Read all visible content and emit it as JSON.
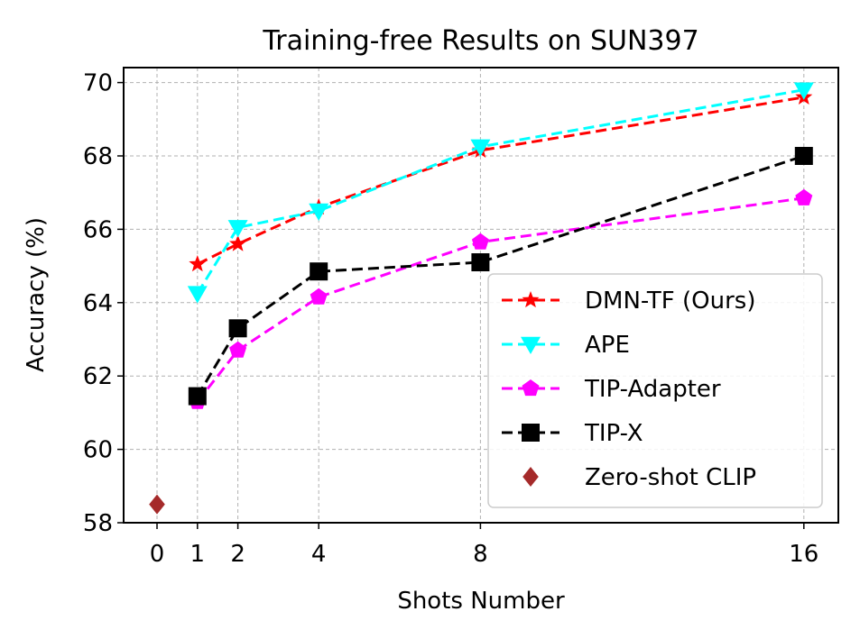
{
  "chart_data": {
    "type": "line",
    "title": "Training-free Results on SUN397",
    "xlabel": "Shots Number",
    "ylabel": "Accuracy (%)",
    "xlim": [
      -1,
      17
    ],
    "ylim": [
      58,
      70.4
    ],
    "xticks": [
      0,
      1,
      2,
      4,
      8,
      16
    ],
    "yticks": [
      58,
      60,
      62,
      64,
      66,
      68,
      70
    ],
    "grid": true,
    "legend_position": "bottom-right",
    "series": [
      {
        "name": "DMN-TF (Ours)",
        "color": "#ff0000",
        "marker": "star",
        "x": [
          1,
          2,
          4,
          8,
          16
        ],
        "values": [
          65.05,
          65.6,
          66.6,
          68.15,
          69.6
        ]
      },
      {
        "name": "APE",
        "color": "#00ffff",
        "marker": "triangle-down",
        "x": [
          1,
          2,
          4,
          8,
          16
        ],
        "values": [
          64.25,
          66.05,
          66.5,
          68.25,
          69.8
        ]
      },
      {
        "name": "TIP-Adapter",
        "color": "#ff00ff",
        "marker": "pentagon",
        "x": [
          1,
          2,
          4,
          8,
          16
        ],
        "values": [
          61.3,
          62.7,
          64.15,
          65.65,
          66.85
        ]
      },
      {
        "name": "TIP-X",
        "color": "#000000",
        "marker": "square",
        "x": [
          1,
          2,
          4,
          8,
          16
        ],
        "values": [
          61.45,
          63.3,
          64.85,
          65.1,
          68.0
        ]
      },
      {
        "name": "Zero-shot CLIP",
        "color": "#a52a2a",
        "marker": "diamond",
        "x": [
          0
        ],
        "values": [
          58.5
        ],
        "line": false
      }
    ]
  }
}
